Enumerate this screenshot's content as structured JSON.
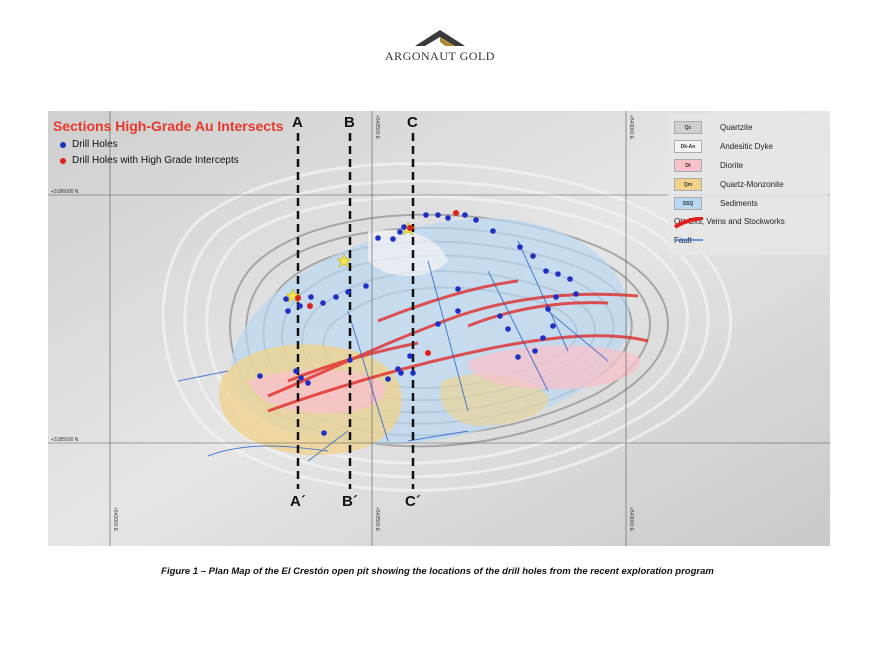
{
  "header": {
    "logo_icon": "argonaut-chevron-icon",
    "company_name": "ARGONAUT GOLD"
  },
  "legend": {
    "title": "Sections High-Grade Au Intersects",
    "items": [
      {
        "label": "Drill Holes",
        "color": "#1f2fc4"
      },
      {
        "label": "Drill Holes with High Grade Intercepts",
        "color": "#e0201e"
      }
    ]
  },
  "sections": {
    "start_labels": [
      "A",
      "B",
      "C"
    ],
    "end_labels": [
      "A´",
      "B´",
      "C´"
    ]
  },
  "geology_legend": [
    {
      "code": "Qz",
      "label": "Quartzite",
      "color": "#cfcfcf"
    },
    {
      "code": "Dk-An",
      "label": "Andesitic Dyke",
      "color": "#f4f4f4"
    },
    {
      "code": "Dt",
      "label": "Diorite",
      "color": "#f7c1c9"
    },
    {
      "code": "Qm",
      "label": "Quartz-Monzonite",
      "color": "#f0d28a"
    },
    {
      "code": "SSQ",
      "label": "Sediments",
      "color": "#b9d8f2"
    },
    {
      "code": "",
      "label": "Qtz Bxs, Veins and Stockworks",
      "color": "#e0201e"
    },
    {
      "code": "",
      "label": "Fault",
      "color": "#2a5fc8"
    }
  ],
  "coordinates": {
    "north_top": "+3186000 N",
    "north_bottom": "+3185500 N",
    "east_top": "+542500 E",
    "east_top_right": "+543000 E",
    "east_bottom_left": "+542000 E",
    "east_bottom_mid": "+542500 E",
    "east_bottom_right": "+543000 E"
  },
  "caption": "Figure 1 – Plan Map of the El Crestón open pit showing the locations of the drill holes from the recent exploration program"
}
